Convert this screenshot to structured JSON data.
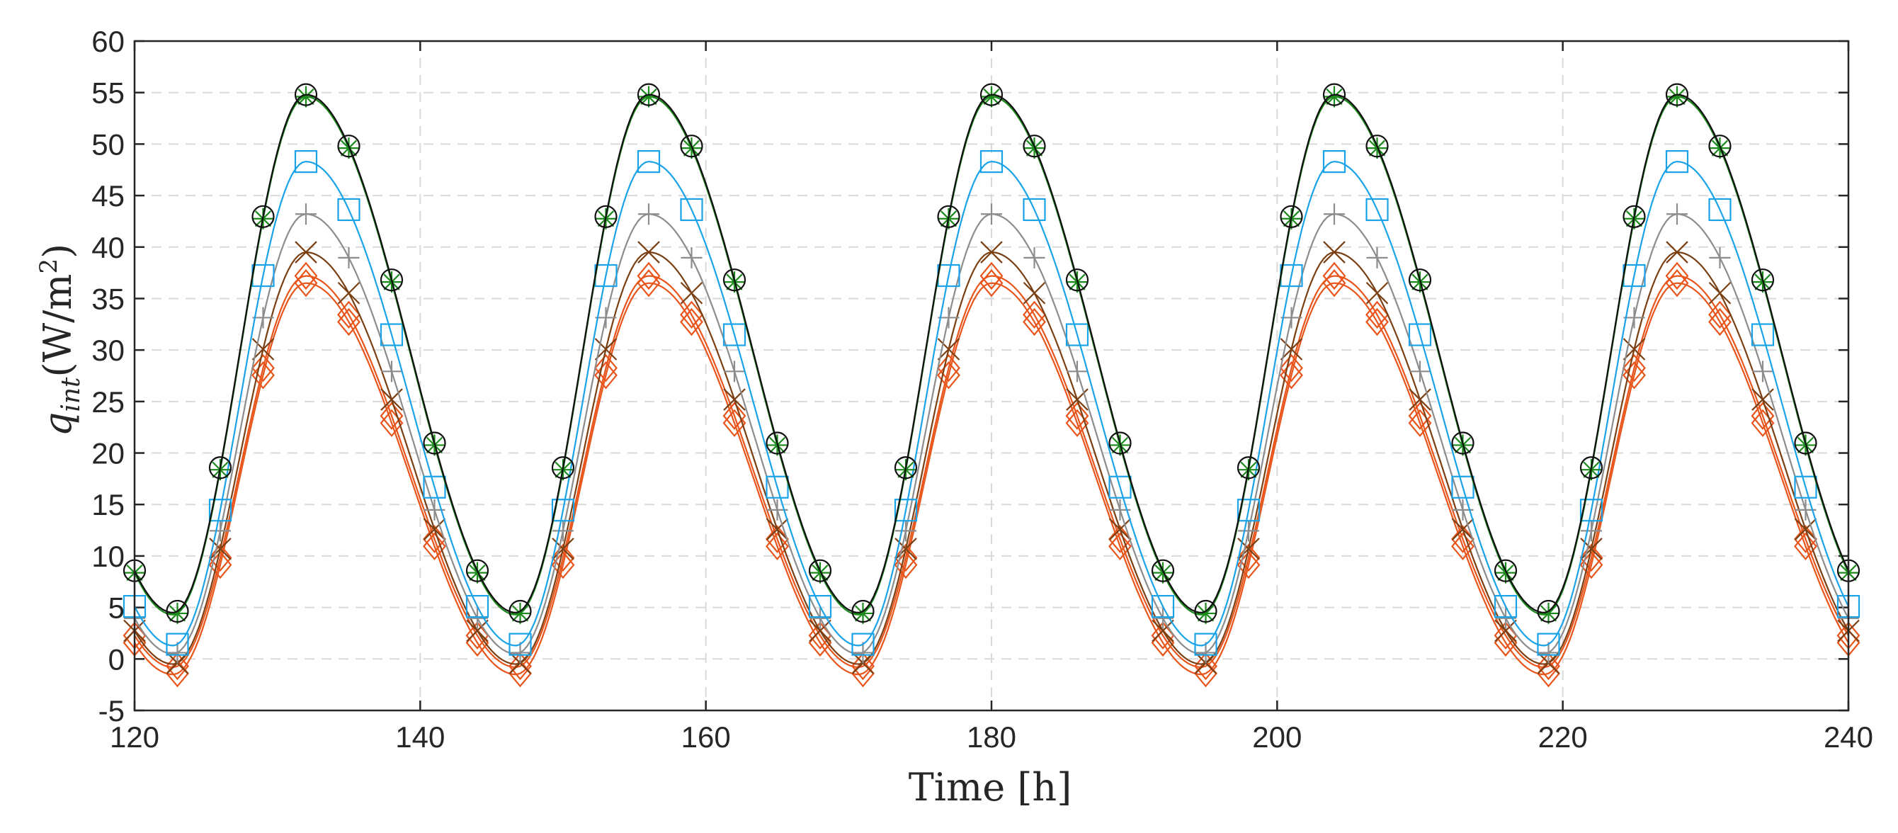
{
  "chart_data": {
    "type": "line",
    "title": "",
    "xlabel": "Time [h]",
    "ylabel": {
      "base": "q",
      "sub": "int",
      "units_open": "(W/m",
      "units_sup": "2",
      "units_close": ")"
    },
    "xlim": [
      120,
      240
    ],
    "ylim": [
      -5,
      60
    ],
    "xticks": [
      120,
      140,
      160,
      180,
      200,
      220,
      240
    ],
    "yticks": [
      -5,
      0,
      5,
      10,
      15,
      20,
      25,
      30,
      35,
      40,
      45,
      50,
      55,
      60
    ],
    "grid": true,
    "period_h": 24,
    "marker_step_h": 3,
    "series": [
      {
        "name": "series-1-diamond",
        "marker": "diamond",
        "color": "#e8541a",
        "min": -1.5,
        "max": 36.5
      },
      {
        "name": "series-2-diamond",
        "marker": "diamond",
        "color": "#e8541a",
        "min": -0.8,
        "max": 37.2
      },
      {
        "name": "series-3-x",
        "marker": "x",
        "color": "#7a3f12",
        "min": -0.5,
        "max": 39.5
      },
      {
        "name": "series-4-plus",
        "marker": "plus",
        "color": "#8c8c8c",
        "min": 0.5,
        "max": 43.2
      },
      {
        "name": "series-5-square",
        "marker": "square",
        "color": "#1aa3e8",
        "min": 1.3,
        "max": 48.3
      },
      {
        "name": "series-6-asterisk",
        "marker": "asterisk",
        "color": "#1a8a1a",
        "min": 4.3,
        "max": 54.6
      },
      {
        "name": "series-7-circle",
        "marker": "circle",
        "color": "#111111",
        "min": 4.5,
        "max": 54.8
      }
    ]
  }
}
